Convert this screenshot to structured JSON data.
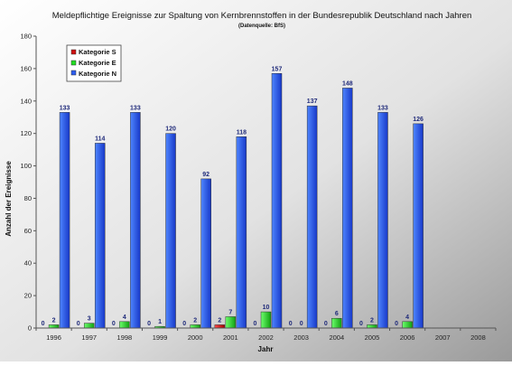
{
  "chart_data": {
    "type": "bar",
    "title": "Meldepflichtige Ereignisse zur Spaltung von Kernbrennstoffen in der Bundesrepublik Deutschland nach Jahren",
    "subtitle": "(Datenquelle: BfS)",
    "xlabel": "Jahr",
    "ylabel": "Anzahl der Ereignisse",
    "ylim": [
      0,
      180
    ],
    "yticks": [
      0,
      20,
      40,
      60,
      80,
      100,
      120,
      140,
      160,
      180
    ],
    "grid": false,
    "legend_position": "top-left",
    "categories": [
      "1996",
      "1997",
      "1998",
      "1999",
      "2000",
      "2001",
      "2002",
      "2003",
      "2004",
      "2005",
      "2006",
      "2007",
      "2008"
    ],
    "series": [
      {
        "name": "Kategorie S",
        "color": "#d01010",
        "values": [
          0,
          0,
          0,
          0,
          0,
          2,
          0,
          0,
          0,
          0,
          0,
          null,
          null
        ]
      },
      {
        "name": "Kategorie E",
        "color": "#22dd22",
        "values": [
          2,
          3,
          4,
          1,
          2,
          7,
          10,
          0,
          6,
          2,
          4,
          null,
          null
        ]
      },
      {
        "name": "Kategorie N",
        "color": "#2e5ef0",
        "values": [
          133,
          114,
          133,
          120,
          92,
          118,
          157,
          137,
          148,
          133,
          126,
          null,
          null
        ]
      }
    ]
  }
}
